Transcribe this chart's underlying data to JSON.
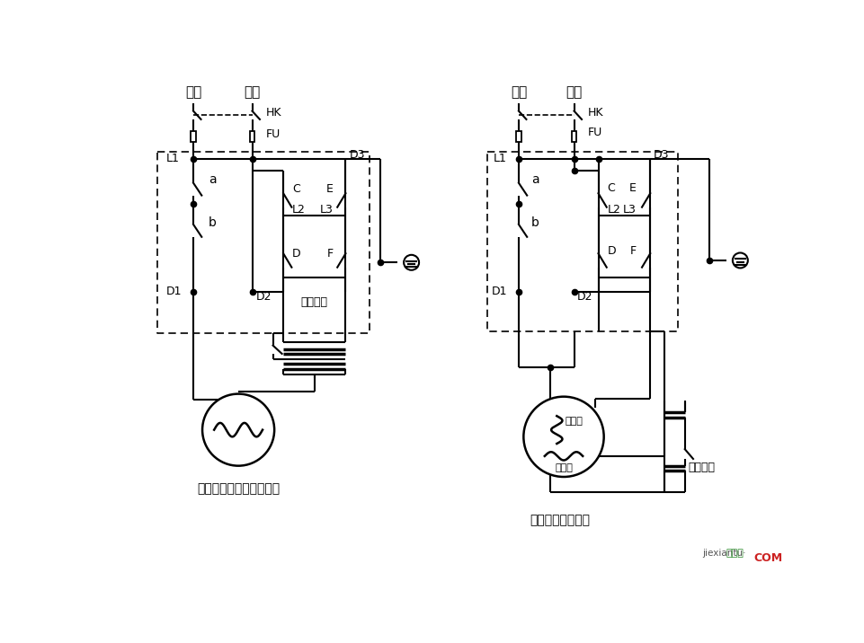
{
  "background_color": "#ffffff",
  "fig_width": 9.62,
  "fig_height": 7.16,
  "dpi": 100,
  "label_left": "不分主、付绕组的电动机",
  "label_right": "有付绕组的电动机",
  "watermark_green": "接线图",
  "watermark_red": "COM",
  "watermark_sub": "jiexiantu·",
  "zero_line": "零线",
  "fire_line": "火线",
  "HK": "HK",
  "FU": "FU",
  "L1": "L1",
  "L2": "L2",
  "L3": "L3",
  "D1": "D1",
  "D2": "D2",
  "D3": "D3",
  "a_label": "a",
  "b_label": "b",
  "C_label": "C",
  "D_label": "D",
  "E_label": "E",
  "F_label": "F",
  "centrifugal_switch": "离心开关",
  "fu_raozu": "付绕组",
  "zhu_raozu": "主绕组"
}
